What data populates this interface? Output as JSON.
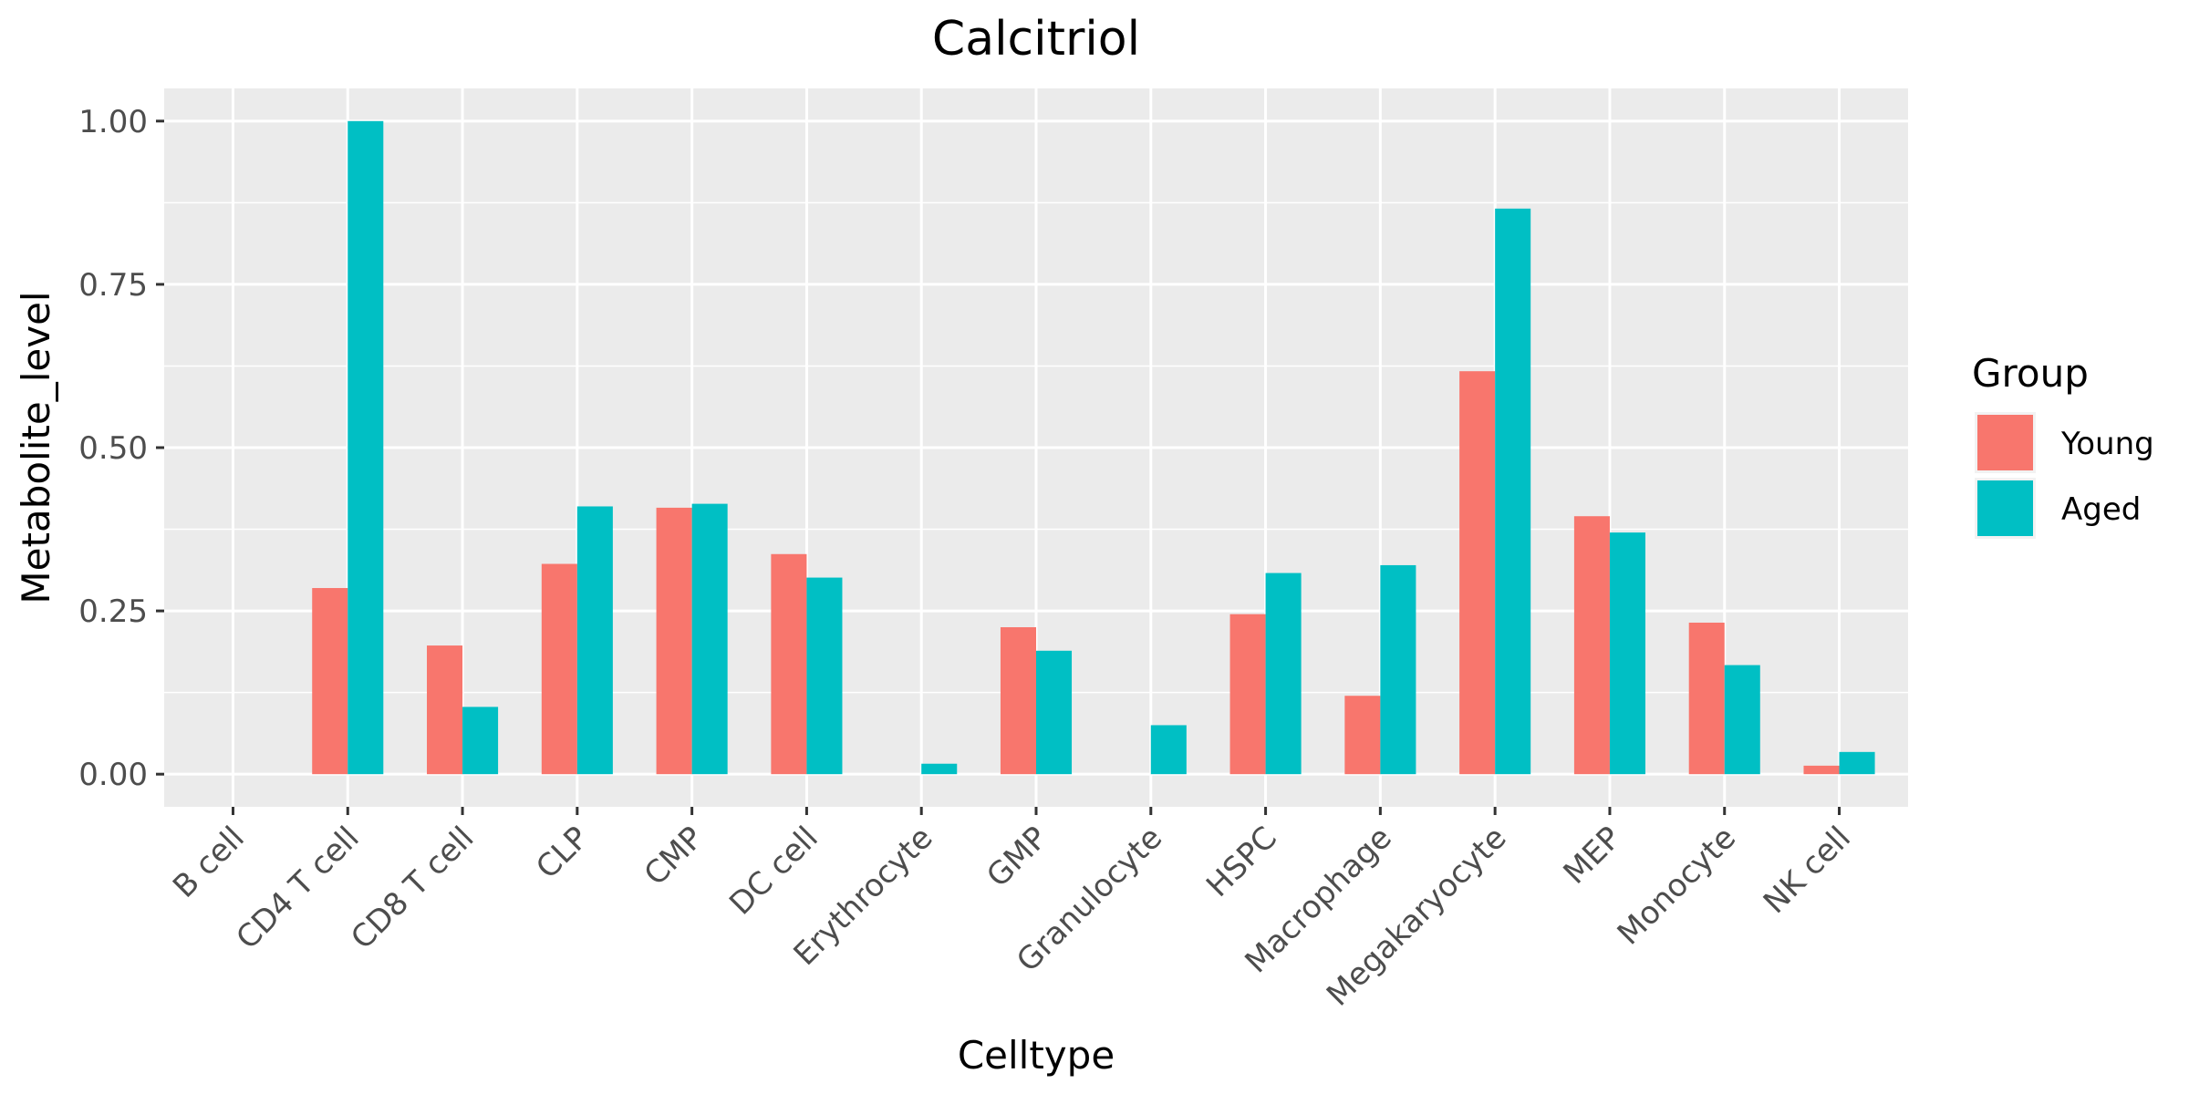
{
  "chart_data": {
    "type": "bar",
    "title": "Calcitriol",
    "xlabel": "Celltype",
    "ylabel": "Metabolite_level",
    "ylim": [
      -0.05,
      1.05
    ],
    "yticks": [
      "0.00",
      "0.25",
      "0.50",
      "0.75",
      "1.00"
    ],
    "ytick_values": [
      0,
      0.25,
      0.5,
      0.75,
      1.0
    ],
    "grid": true,
    "legend": {
      "title": "Group",
      "placement": "right"
    },
    "categories": [
      "B cell",
      "CD4 T cell",
      "CD8 T cell",
      "CLP",
      "CMP",
      "DC cell",
      "Erythrocyte",
      "GMP",
      "Granulocyte",
      "HSPC",
      "Macrophage",
      "Megakaryocyte",
      "MEP",
      "Monocyte",
      "NK cell"
    ],
    "series": [
      {
        "name": "Young",
        "color": "#F8766D",
        "values": [
          0,
          0.285,
          0.197,
          0.322,
          0.408,
          0.337,
          0,
          0.225,
          0,
          0.245,
          0.12,
          0.617,
          0.395,
          0.232,
          0.013
        ]
      },
      {
        "name": "Aged",
        "color": "#00BFC4",
        "values": [
          0,
          1.0,
          0.103,
          0.41,
          0.414,
          0.301,
          0.016,
          0.189,
          0.075,
          0.308,
          0.32,
          0.866,
          0.37,
          0.167,
          0.034
        ]
      }
    ]
  }
}
